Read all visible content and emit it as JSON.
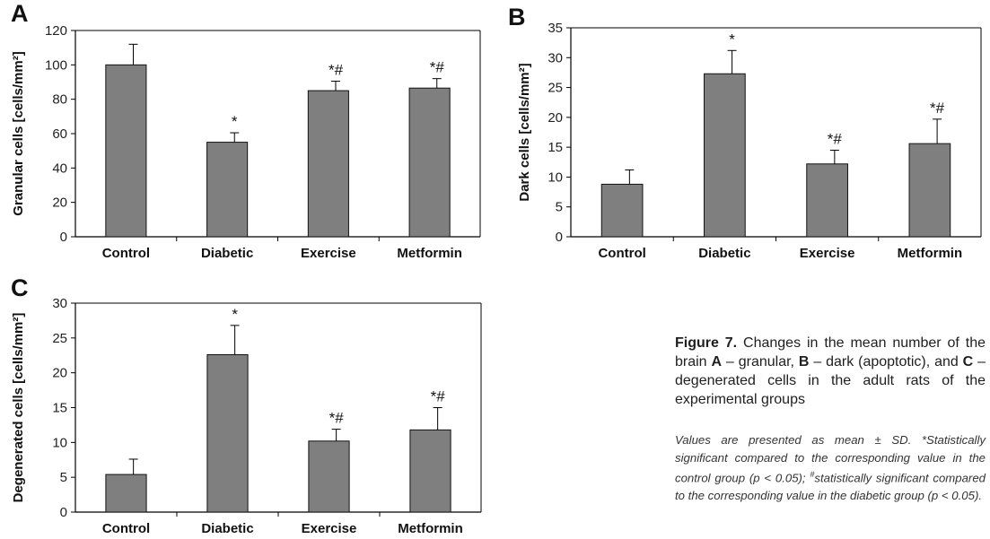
{
  "chart_data": [
    {
      "type": "bar",
      "panel": "A",
      "categories": [
        "Control",
        "Diabetic",
        "Exercise",
        "Metformin"
      ],
      "values": [
        100,
        55,
        85,
        86.5
      ],
      "errors": [
        12,
        5.5,
        5.5,
        5.5
      ],
      "significance": [
        "",
        "*",
        "*#",
        "*#"
      ],
      "ylabel": "Granular cells [cells/mm²]",
      "ylim": [
        0,
        120
      ],
      "yticks": [
        0,
        20,
        40,
        60,
        80,
        100,
        120
      ],
      "grid": false,
      "bar_color": "#7f7f7f"
    },
    {
      "type": "bar",
      "panel": "B",
      "categories": [
        "Control",
        "Diabetic",
        "Exercise",
        "Metformin"
      ],
      "values": [
        8.8,
        27.3,
        12.2,
        15.6
      ],
      "errors": [
        2.4,
        3.9,
        2.3,
        4.1
      ],
      "significance": [
        "",
        "*",
        "*#",
        "*#"
      ],
      "ylabel": "Dark cells [cells/mm²]",
      "ylim": [
        0,
        35
      ],
      "yticks": [
        0,
        5,
        10,
        15,
        20,
        25,
        30,
        35
      ],
      "grid": false,
      "bar_color": "#7f7f7f"
    },
    {
      "type": "bar",
      "panel": "C",
      "categories": [
        "Control",
        "Diabetic",
        "Exercise",
        "Metformin"
      ],
      "values": [
        5.4,
        22.6,
        10.2,
        11.8
      ],
      "errors": [
        2.2,
        4.2,
        1.7,
        3.2
      ],
      "significance": [
        "",
        "*",
        "*#",
        "*#"
      ],
      "ylabel": "Degenerated cells [cells/mm²]",
      "ylim": [
        0,
        30
      ],
      "yticks": [
        0,
        5,
        10,
        15,
        20,
        25,
        30
      ],
      "grid": false,
      "bar_color": "#7f7f7f"
    }
  ],
  "caption": {
    "figure_label": "Figure 7.",
    "pre": " Changes in the mean number of the brain ",
    "a_letter": "A",
    "a_text": " – granular, ",
    "b_letter": "B",
    "b_text": " – dark (apoptotic), and ",
    "c_letter": "C",
    "c_text": " – degenerated cells in the adult rats of the experimental groups"
  },
  "note": {
    "part1": "Values are presented as mean ± SD. *Statistically significant compared to the corresponding value in the control group (p < 0.05); ",
    "hash": "#",
    "part2": "statistically significant compared to the corresponding value in the diabetic group (p < 0.05)."
  }
}
